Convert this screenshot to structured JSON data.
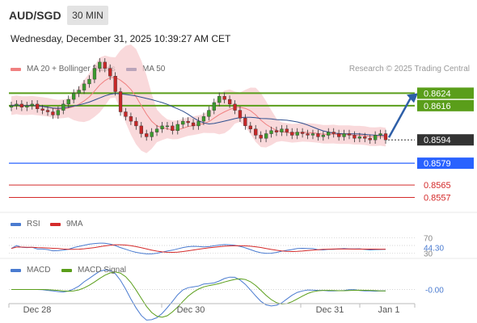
{
  "header": {
    "symbol": "AUD/SGD",
    "timeframe": "30 MIN",
    "datetime": "Wednesday, December 31, 2025 10:39:27 AM CET",
    "credit": "Research © 2025 Trading Central"
  },
  "legend": {
    "ma20": "MA 20 + Bollinger Bands",
    "ma50": "MA 50",
    "ma20_color": "#f08080",
    "ma50_color": "#2e4f8f"
  },
  "rsi_panel": {
    "rsi_label": "RSI",
    "ma_label": "9MA",
    "rsi_color": "#4a7bd0",
    "ma_color": "#d42a2a",
    "level_70": "70",
    "level_30": "30",
    "current": "44.30"
  },
  "macd_panel": {
    "macd_label": "MACD",
    "signal_label": "MACD Signal",
    "macd_color": "#4a7bd0",
    "signal_color": "#5a9e1a",
    "current": "-0.00"
  },
  "chart_data": {
    "type": "candlestick",
    "x_ticks": [
      "Dec 28",
      "Dec 30",
      "Dec 31",
      "Jan 1"
    ],
    "ylim": [
      0.855,
      0.8632
    ],
    "levels": [
      {
        "label": "0.8624",
        "value": 0.8624,
        "color": "#5a9e1a",
        "kind": "resistance"
      },
      {
        "label": "0.8616",
        "value": 0.8616,
        "color": "#5a9e1a",
        "kind": "resistance"
      },
      {
        "label": "0.8594",
        "value": 0.8594,
        "color": "#333333",
        "kind": "last"
      },
      {
        "label": "0.8579",
        "value": 0.8579,
        "color": "#2962ff",
        "kind": "pivot"
      },
      {
        "label": "0.8565",
        "value": 0.8565,
        "color": "#d42a2a",
        "kind": "support"
      },
      {
        "label": "0.8557",
        "value": 0.8557,
        "color": "#d42a2a",
        "kind": "support"
      }
    ],
    "close_series": [
      0.8616,
      0.8617,
      0.8615,
      0.8616,
      0.8617,
      0.8614,
      0.8613,
      0.8612,
      0.861,
      0.8613,
      0.8617,
      0.862,
      0.8624,
      0.8626,
      0.863,
      0.8633,
      0.864,
      0.8644,
      0.864,
      0.8635,
      0.8625,
      0.8612,
      0.8609,
      0.8606,
      0.8603,
      0.8598,
      0.8596,
      0.8599,
      0.8601,
      0.8603,
      0.8603,
      0.86,
      0.8604,
      0.8606,
      0.8605,
      0.8603,
      0.8606,
      0.8609,
      0.8613,
      0.8618,
      0.8622,
      0.862,
      0.8617,
      0.8613,
      0.8608,
      0.8603,
      0.8601,
      0.8597,
      0.8595,
      0.8598,
      0.86,
      0.8599,
      0.8601,
      0.8599,
      0.8597,
      0.8599,
      0.8598,
      0.8597,
      0.8598,
      0.8596,
      0.8597,
      0.8599,
      0.8598,
      0.8596,
      0.8598,
      0.8597,
      0.8595,
      0.8596,
      0.8595,
      0.8594,
      0.8597,
      0.8598,
      0.8594
    ],
    "rsi_ylim": [
      20,
      80
    ],
    "macd_ylim": [
      -0.0006,
      0.0006
    ]
  }
}
